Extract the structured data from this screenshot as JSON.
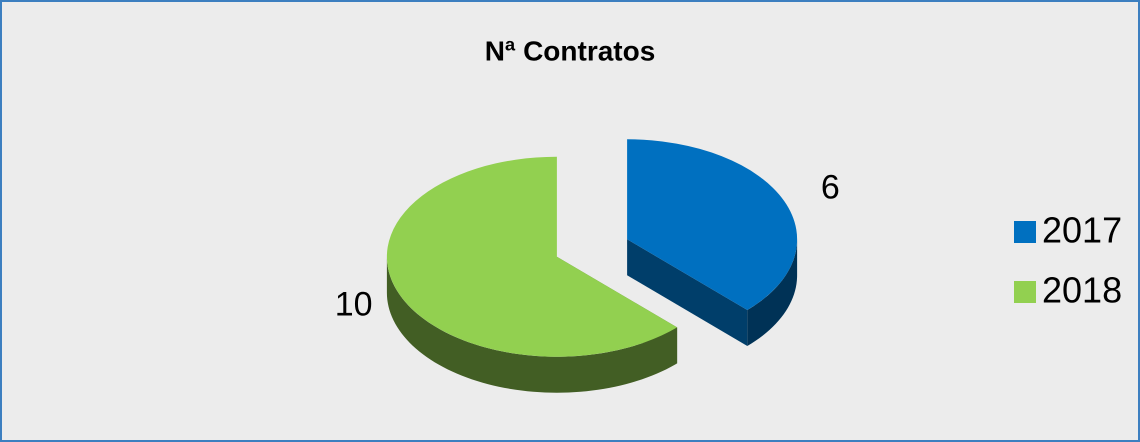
{
  "chart_data": {
    "type": "pie",
    "title": "Nª Contratos",
    "categories": [
      "2017",
      "2018"
    ],
    "values": [
      6,
      10
    ],
    "colors": [
      "#0070c0",
      "#92d050"
    ],
    "legend": "right"
  }
}
